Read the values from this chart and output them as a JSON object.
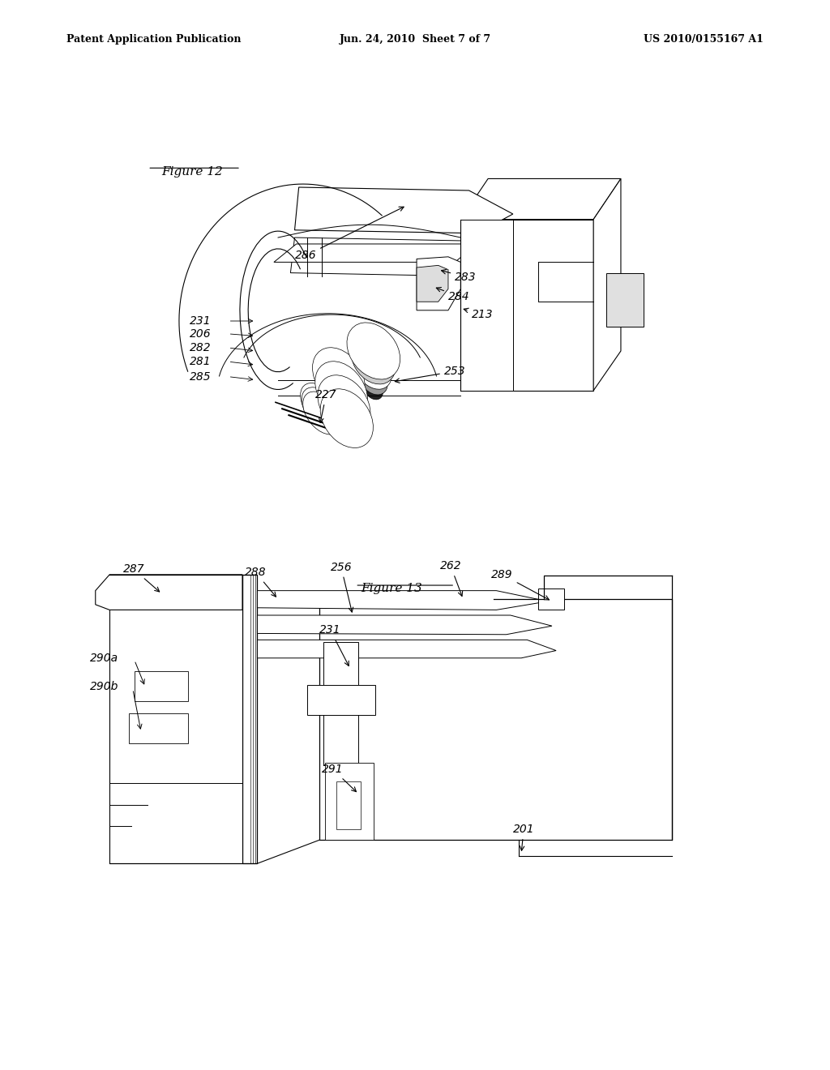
{
  "bg_color": "#ffffff",
  "header_left": "Patent Application Publication",
  "header_center": "Jun. 24, 2010  Sheet 7 of 7",
  "header_right": "US 2010/0155167 A1",
  "fig12_caption": "Figure 12",
  "fig13_caption": "Figure 13"
}
